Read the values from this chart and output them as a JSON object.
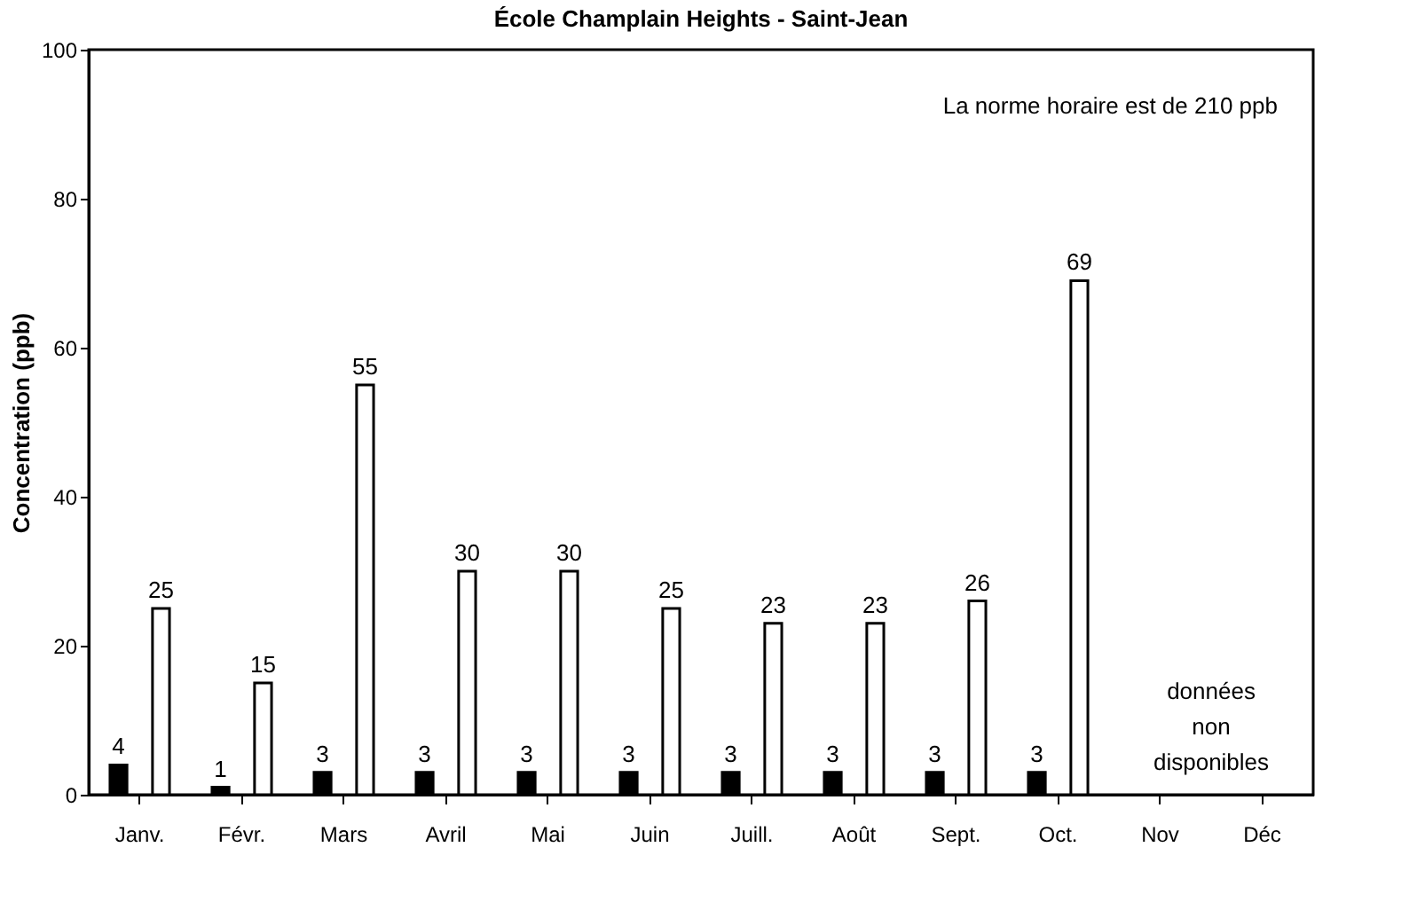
{
  "chart_data": {
    "type": "bar",
    "title": "École Champlain Heights - Saint-Jean",
    "ylabel": "Concentration (ppb)",
    "categories": [
      "Janv.",
      "Févr.",
      "Mars",
      "Avril",
      "Mai",
      "Juin",
      "Juill.",
      "Août",
      "Sept.",
      "Oct.",
      "Nov",
      "Déc"
    ],
    "series": [
      {
        "color": "#000000",
        "values": [
          4,
          1,
          3,
          3,
          3,
          3,
          3,
          3,
          3,
          3,
          null,
          null
        ]
      },
      {
        "color": "#ffffff",
        "values": [
          25,
          15,
          55,
          30,
          30,
          25,
          23,
          23,
          26,
          69,
          null,
          null
        ]
      }
    ],
    "ylim": [
      0,
      100
    ],
    "yticks": [
      0,
      20,
      40,
      60,
      80,
      100
    ],
    "grid": false,
    "legend": false,
    "data_labels": true,
    "annotations": [
      "La norme horaire est de 210 ppb",
      "données non disponibles"
    ]
  }
}
